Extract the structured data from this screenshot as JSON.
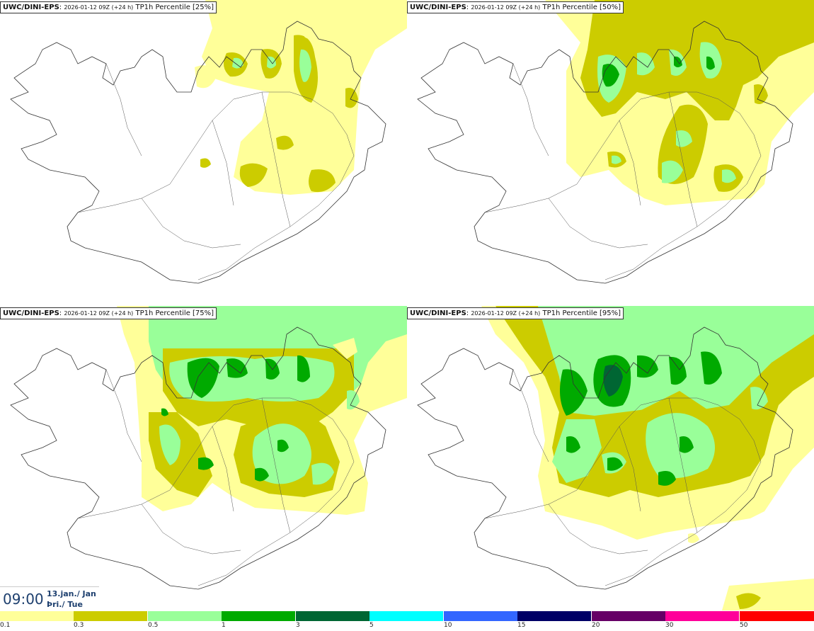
{
  "panels": [
    {
      "model": "UWC/DINI-EPS",
      "run": "2026-01-12 09Z (+24 h)",
      "field": "TP1h Percentile [25%]"
    },
    {
      "model": "UWC/DINI-EPS",
      "run": "2026-01-12 09Z (+24 h)",
      "field": "TP1h Percentile [50%]"
    },
    {
      "model": "UWC/DINI-EPS",
      "run": "2026-01-12 09Z (+24 h)",
      "field": "TP1h Percentile [75%]"
    },
    {
      "model": "UWC/DINI-EPS",
      "run": "2026-01-12 09Z (+24 h)",
      "field": "TP1h Percentile [95%]"
    }
  ],
  "valid_time": {
    "clock": "09:00",
    "date_line1": "13.jan./ Jan",
    "date_line2": "Þri./ Tue"
  },
  "legend": {
    "colors": [
      "#ffff99",
      "#cccc00",
      "#99ff99",
      "#00aa00",
      "#006633",
      "#00ffff",
      "#3366ff",
      "#000066",
      "#660066",
      "#ff0099",
      "#ff0000"
    ],
    "ticks": [
      "0.1",
      "0.3",
      "0.5",
      "1",
      "3",
      "5",
      "10",
      "15",
      "20",
      "30",
      "50"
    ]
  }
}
